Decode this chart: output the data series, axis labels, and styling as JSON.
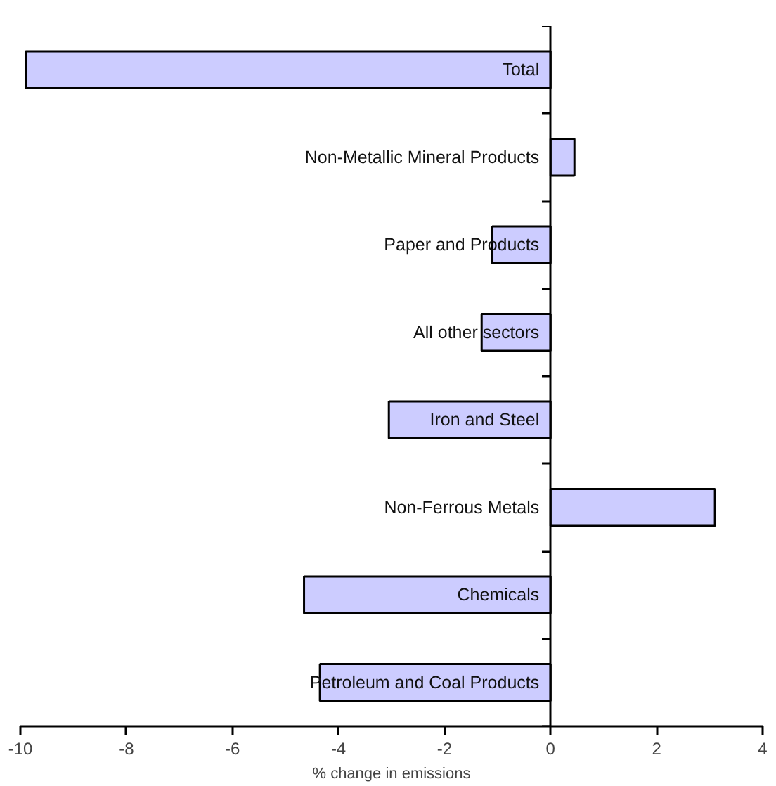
{
  "chart_data": {
    "type": "bar",
    "orientation": "horizontal",
    "xlabel": "% change in emissions",
    "categories": [
      "Total",
      "Non-Metallic Mineral Products",
      "Paper and Products",
      "All other sectors",
      "Iron and Steel",
      "Non-Ferrous Metals",
      "Chemicals",
      "Petroleum and Coal Products"
    ],
    "values": [
      -9.9,
      0.45,
      -1.1,
      -1.3,
      -3.05,
      3.1,
      -4.65,
      -4.35
    ],
    "color": "#ccccff",
    "xlim": [
      -10,
      4
    ],
    "xticks": [
      -10,
      -8,
      -6,
      -4,
      -2,
      0,
      2,
      4
    ],
    "grid": false
  }
}
